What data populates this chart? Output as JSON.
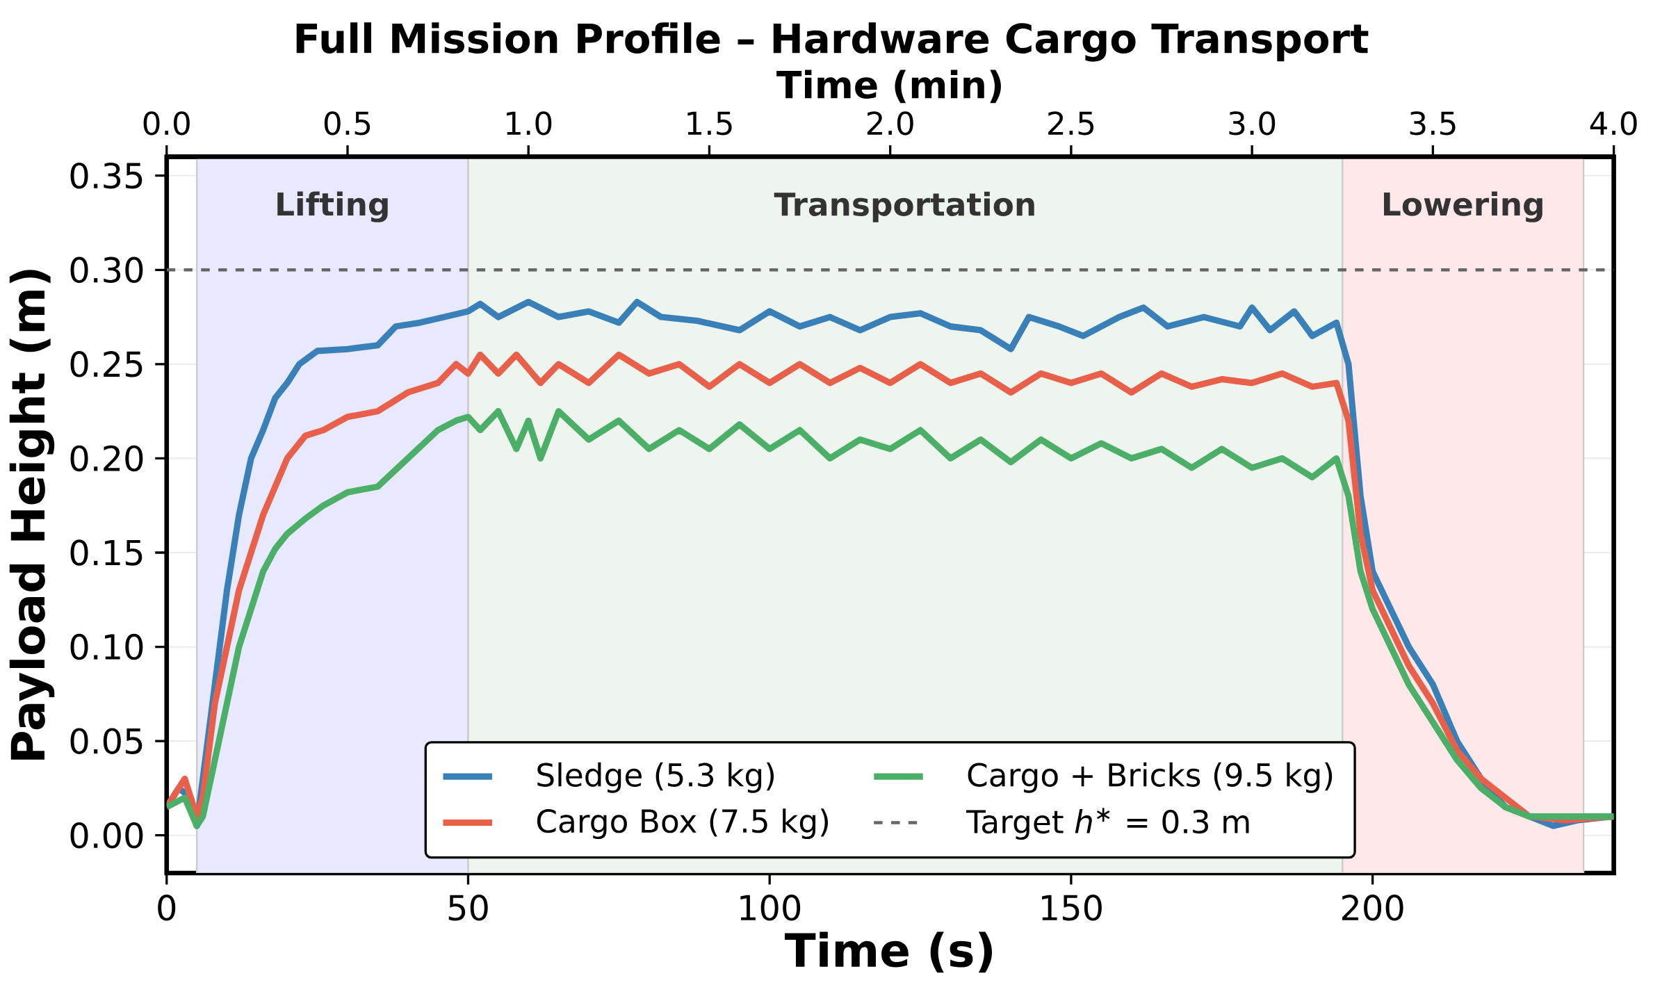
{
  "chart_data": {
    "type": "line",
    "title": "Full Mission Profile – Hardware Cargo Transport",
    "xlabel": "Time (s)",
    "ylabel": "Payload Height (m)",
    "x2label": "Time (min)",
    "xlim": [
      0,
      240
    ],
    "ylim": [
      -0.02,
      0.36
    ],
    "x2lim": [
      0,
      4
    ],
    "xticks": [
      0,
      50,
      100,
      150,
      200
    ],
    "yticks": [
      {
        "value": 0,
        "label": "0.00"
      },
      {
        "value": 0.05,
        "label": "0.05"
      },
      {
        "value": 0.1,
        "label": "0.10"
      },
      {
        "value": 0.15,
        "label": "0.15"
      },
      {
        "value": 0.2,
        "label": "0.20"
      },
      {
        "value": 0.25,
        "label": "0.25"
      },
      {
        "value": 0.3,
        "label": "0.30"
      },
      {
        "value": 0.35,
        "label": "0.35"
      }
    ],
    "x2ticks": [
      {
        "value": 0,
        "label": "0.0"
      },
      0.5,
      {
        "value": 1,
        "label": "1.0"
      },
      1.5,
      {
        "value": 2,
        "label": "2.0"
      },
      2.5,
      {
        "value": 3,
        "label": "3.0"
      },
      3.5,
      {
        "value": 4,
        "label": "4.0"
      }
    ],
    "grid": true,
    "legend": "bottom",
    "bands": [
      {
        "axis": "x",
        "from": 5,
        "to": 50,
        "label": "Lifting",
        "color": "#e8e8ff"
      },
      {
        "axis": "x",
        "from": 50,
        "to": 195,
        "label": "Transportation",
        "color": "#eef5ee"
      },
      {
        "axis": "x",
        "from": 195,
        "to": 235,
        "label": "Lowering",
        "color": "#ffe8ea"
      }
    ],
    "ref_lines": [
      {
        "axis": "y",
        "value": 0.3,
        "label": "Target *h*$^{∗}$ = 0.3 m",
        "color": "#666666",
        "line_style": "dashed"
      }
    ],
    "series": [
      {
        "name": "Sledge (5.3 kg)",
        "color": "#3a80b8",
        "x": [
          0,
          2,
          4,
          5,
          6,
          8,
          10,
          12,
          14,
          16,
          18,
          20,
          22,
          25,
          30,
          35,
          38,
          42,
          46,
          50,
          52,
          55,
          60,
          65,
          70,
          75,
          78,
          82,
          88,
          95,
          100,
          105,
          110,
          115,
          120,
          125,
          130,
          135,
          140,
          143,
          148,
          152,
          158,
          162,
          166,
          172,
          178,
          180,
          183,
          187,
          190,
          194,
          196,
          198,
          200,
          203,
          206,
          210,
          214,
          218,
          222,
          226,
          230,
          234,
          240
        ],
        "values": [
          0.015,
          0.025,
          0.02,
          0.005,
          0.03,
          0.08,
          0.13,
          0.17,
          0.2,
          0.215,
          0.232,
          0.24,
          0.25,
          0.257,
          0.258,
          0.26,
          0.27,
          0.272,
          0.275,
          0.278,
          0.282,
          0.275,
          0.283,
          0.275,
          0.278,
          0.272,
          0.283,
          0.275,
          0.273,
          0.268,
          0.278,
          0.27,
          0.275,
          0.268,
          0.275,
          0.277,
          0.27,
          0.268,
          0.258,
          0.275,
          0.27,
          0.265,
          0.275,
          0.28,
          0.27,
          0.275,
          0.27,
          0.28,
          0.268,
          0.278,
          0.265,
          0.272,
          0.25,
          0.18,
          0.14,
          0.12,
          0.1,
          0.08,
          0.05,
          0.03,
          0.015,
          0.01,
          0.005,
          0.008,
          0.01
        ]
      },
      {
        "name": "Cargo Box (7.5 kg)",
        "color": "#e8604a",
        "x": [
          0,
          3,
          5,
          6,
          8,
          10,
          12,
          14,
          16,
          18,
          20,
          23,
          26,
          30,
          35,
          40,
          45,
          48,
          50,
          52,
          55,
          58,
          62,
          65,
          70,
          75,
          80,
          85,
          90,
          95,
          100,
          105,
          110,
          115,
          120,
          125,
          130,
          135,
          140,
          145,
          150,
          155,
          160,
          165,
          170,
          175,
          180,
          185,
          190,
          194,
          196,
          198,
          200,
          203,
          206,
          210,
          214,
          218,
          222,
          226,
          232,
          240
        ],
        "values": [
          0.015,
          0.03,
          0.01,
          0.02,
          0.07,
          0.1,
          0.13,
          0.15,
          0.17,
          0.185,
          0.2,
          0.212,
          0.215,
          0.222,
          0.225,
          0.235,
          0.24,
          0.25,
          0.245,
          0.255,
          0.245,
          0.255,
          0.24,
          0.25,
          0.24,
          0.255,
          0.245,
          0.25,
          0.238,
          0.25,
          0.24,
          0.25,
          0.24,
          0.248,
          0.24,
          0.25,
          0.24,
          0.245,
          0.235,
          0.245,
          0.24,
          0.245,
          0.235,
          0.245,
          0.238,
          0.242,
          0.24,
          0.245,
          0.238,
          0.24,
          0.22,
          0.16,
          0.13,
          0.11,
          0.09,
          0.07,
          0.045,
          0.03,
          0.02,
          0.01,
          0.008,
          0.01
        ]
      },
      {
        "name": "Cargo + Bricks (9.5 kg)",
        "color": "#4caf68",
        "x": [
          0,
          3,
          5,
          6,
          8,
          10,
          12,
          14,
          16,
          18,
          20,
          23,
          26,
          30,
          35,
          40,
          45,
          48,
          50,
          52,
          55,
          58,
          60,
          62,
          65,
          70,
          75,
          80,
          85,
          90,
          95,
          100,
          105,
          110,
          115,
          120,
          125,
          130,
          135,
          140,
          145,
          150,
          155,
          160,
          165,
          170,
          175,
          180,
          185,
          190,
          194,
          196,
          198,
          200,
          203,
          206,
          210,
          214,
          218,
          222,
          226,
          232,
          240
        ],
        "values": [
          0.015,
          0.02,
          0.005,
          0.01,
          0.04,
          0.07,
          0.1,
          0.12,
          0.14,
          0.152,
          0.16,
          0.168,
          0.175,
          0.182,
          0.185,
          0.2,
          0.215,
          0.22,
          0.222,
          0.215,
          0.225,
          0.205,
          0.22,
          0.2,
          0.225,
          0.21,
          0.22,
          0.205,
          0.215,
          0.205,
          0.218,
          0.205,
          0.215,
          0.2,
          0.21,
          0.205,
          0.215,
          0.2,
          0.21,
          0.198,
          0.21,
          0.2,
          0.208,
          0.2,
          0.205,
          0.195,
          0.205,
          0.195,
          0.2,
          0.19,
          0.2,
          0.18,
          0.14,
          0.12,
          0.1,
          0.08,
          0.06,
          0.04,
          0.025,
          0.015,
          0.01,
          0.01,
          0.01
        ]
      }
    ]
  }
}
